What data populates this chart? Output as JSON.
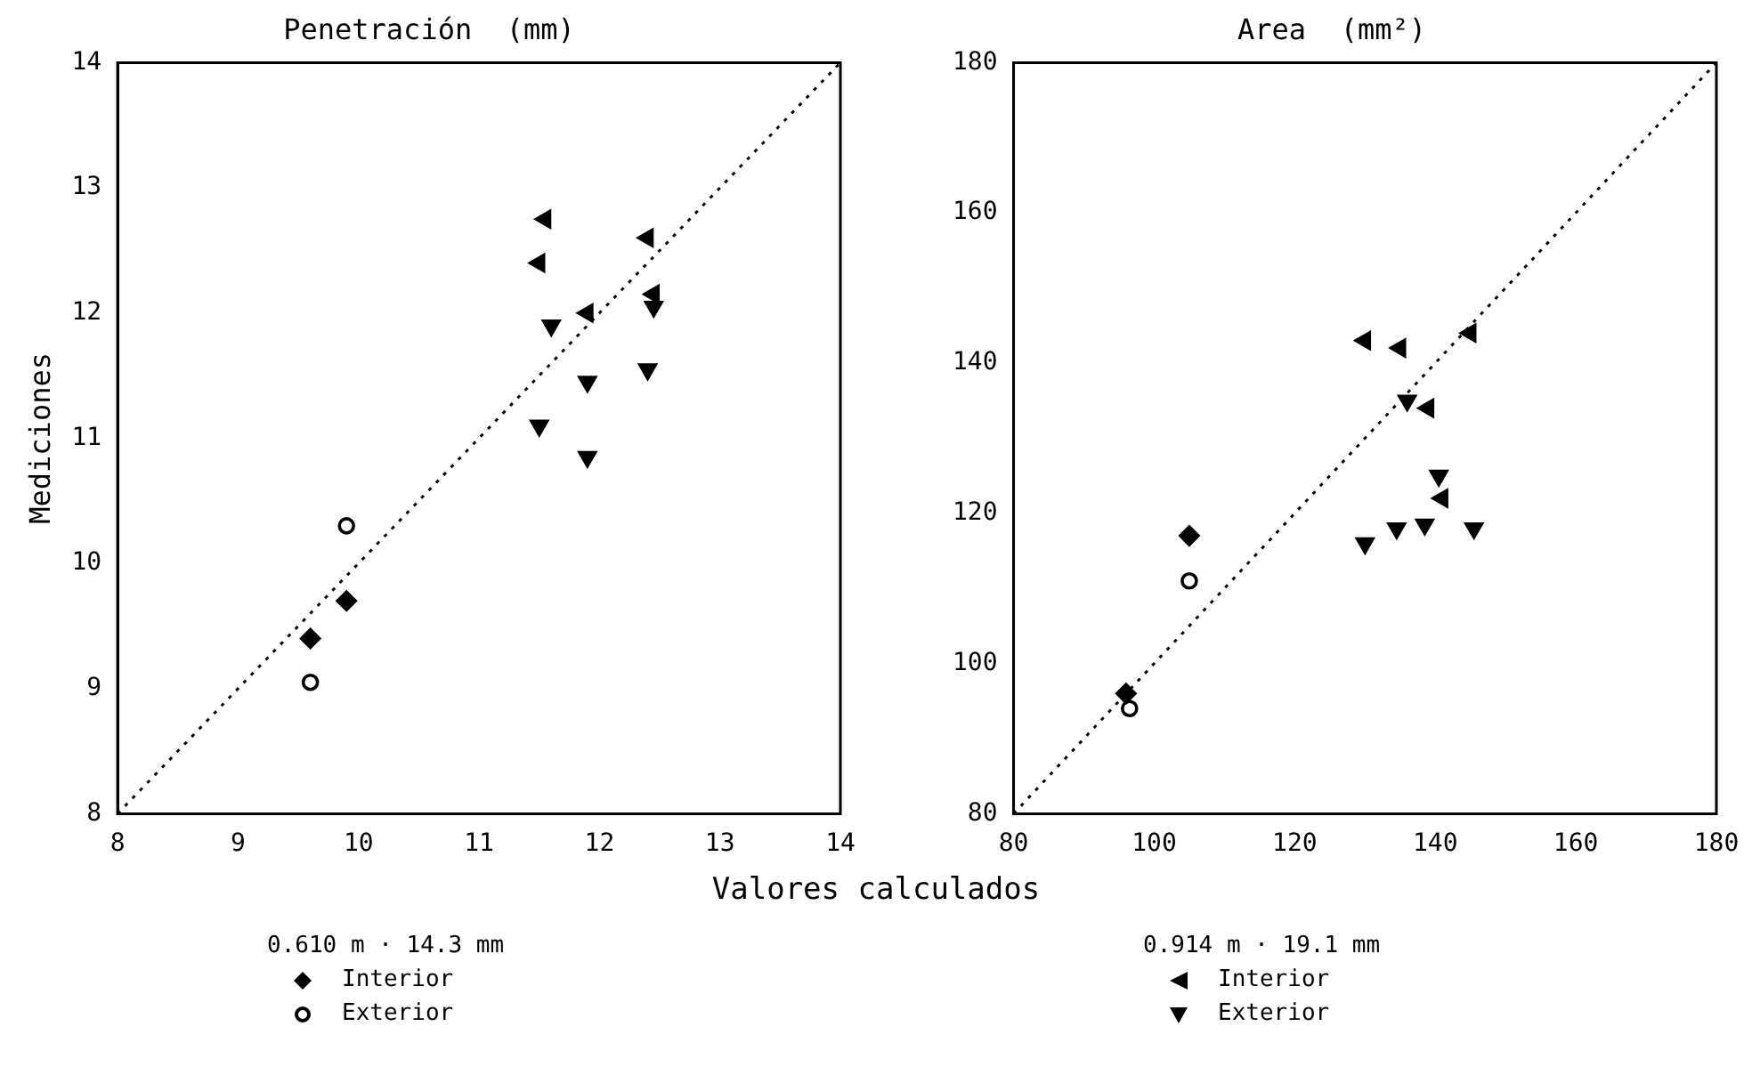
{
  "chart_data": [
    {
      "type": "scatter",
      "title": "Penetración  (mm)",
      "xlabel": "Valores calculados",
      "ylabel": "Mediciones",
      "xlim": [
        8,
        14
      ],
      "ylim": [
        8,
        14
      ],
      "xticks": [
        8,
        9,
        10,
        11,
        12,
        13,
        14
      ],
      "yticks": [
        8,
        9,
        10,
        11,
        12,
        13,
        14
      ],
      "grid": false,
      "legend": "bottom",
      "legend_title": "0.610 m · 14.3 mm",
      "series": [
        {
          "name": "Interior",
          "color": "#000000",
          "marker": "diamond",
          "x": [
            9.6,
            9.9
          ],
          "values": [
            9.4,
            9.7
          ]
        },
        {
          "name": "Exterior",
          "color": "#000000",
          "marker": "circle",
          "x": [
            9.6,
            9.9
          ],
          "values": [
            9.05,
            10.3
          ]
        },
        {
          "color": "#000000",
          "marker": "triangle-left",
          "x": [
            11.55,
            11.5,
            12.4,
            11.9,
            12.45
          ],
          "values": [
            12.75,
            12.4,
            12.6,
            12.0,
            12.15
          ]
        },
        {
          "color": "#000000",
          "marker": "triangle-down",
          "x": [
            12.45,
            11.6,
            11.9,
            12.4,
            11.5,
            11.9
          ],
          "values": [
            12.05,
            11.9,
            11.45,
            11.55,
            11.1,
            10.85
          ]
        },
        {
          "type": "line",
          "color": "#000000",
          "marker": "none",
          "line_style": "dotted",
          "x": [
            8,
            14
          ],
          "values": [
            8,
            14
          ]
        }
      ]
    },
    {
      "type": "scatter",
      "title": "Area  (mm²)",
      "xlim": [
        80,
        180
      ],
      "ylim": [
        80,
        180
      ],
      "xticks": [
        80,
        100,
        120,
        140,
        160,
        180
      ],
      "yticks": [
        80,
        100,
        120,
        140,
        160,
        180
      ],
      "grid": false,
      "legend": "bottom",
      "legend_title": "0.914 m · 19.1 mm",
      "series": [
        {
          "color": "#000000",
          "marker": "diamond",
          "x": [
            96,
            105
          ],
          "values": [
            96,
            117
          ]
        },
        {
          "color": "#000000",
          "marker": "circle",
          "x": [
            96.5,
            105
          ],
          "values": [
            94,
            111
          ]
        },
        {
          "name": "Interior",
          "color": "#000000",
          "marker": "triangle-left",
          "x": [
            130,
            135,
            145,
            139,
            141
          ],
          "values": [
            143,
            142,
            144,
            134,
            122
          ]
        },
        {
          "name": "Exterior",
          "color": "#000000",
          "marker": "triangle-down",
          "x": [
            136,
            140.5,
            130,
            134.5,
            138.5,
            145.5
          ],
          "values": [
            135,
            125,
            116,
            118,
            118.5,
            118
          ]
        },
        {
          "type": "line",
          "color": "#000000",
          "marker": "none",
          "line_style": "dotted",
          "x": [
            80,
            180
          ],
          "values": [
            80,
            180
          ]
        }
      ]
    }
  ]
}
